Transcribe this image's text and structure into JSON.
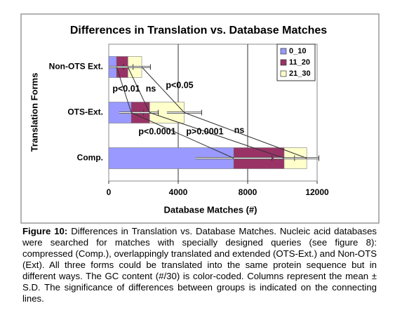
{
  "chart_data": {
    "type": "stacked-barh",
    "title": "Differences in Translation vs. Database Matches",
    "xlabel": "Database Matches (#)",
    "ylabel": "Translation Forms",
    "categories": [
      "Comp.",
      "OTS-Ext.",
      "Non-OTS Ext."
    ],
    "series": [
      {
        "name": "0_10",
        "color": "#9999ff",
        "values": [
          7200,
          1300,
          450
        ],
        "errors": [
          2200,
          700,
          400
        ]
      },
      {
        "name": "11_20",
        "color": "#993366",
        "values": [
          2900,
          1050,
          650
        ],
        "errors": [
          600,
          500,
          300
        ]
      },
      {
        "name": "21_30",
        "color": "#ffffcc",
        "values": [
          1300,
          2000,
          800
        ],
        "errors": [
          700,
          1000,
          500
        ]
      }
    ],
    "xlim": [
      0,
      12000
    ],
    "xticks": [
      0,
      4000,
      8000,
      12000
    ],
    "grid": true,
    "legend": "top-right",
    "annotations": [
      "p<0.01",
      "ns",
      "p<0.05",
      "p<0.0001",
      "p>0.0001",
      "ns"
    ]
  },
  "caption": {
    "label": "Figure 10:",
    "text": "Differences in Translation vs. Database Matches. Nucleic acid databases were searched for matches with specially designed queries (see figure 8): compressed (Comp.), overlappingly translated and extended (OTS-Ext.) and Non-OTS (Ext). All three forms could be translated into the same protein sequence but in different ways. The GC content (#/30) is color-coded. Columns represent the mean ± S.D. The significance of differences between groups is indicated on the connecting lines."
  }
}
